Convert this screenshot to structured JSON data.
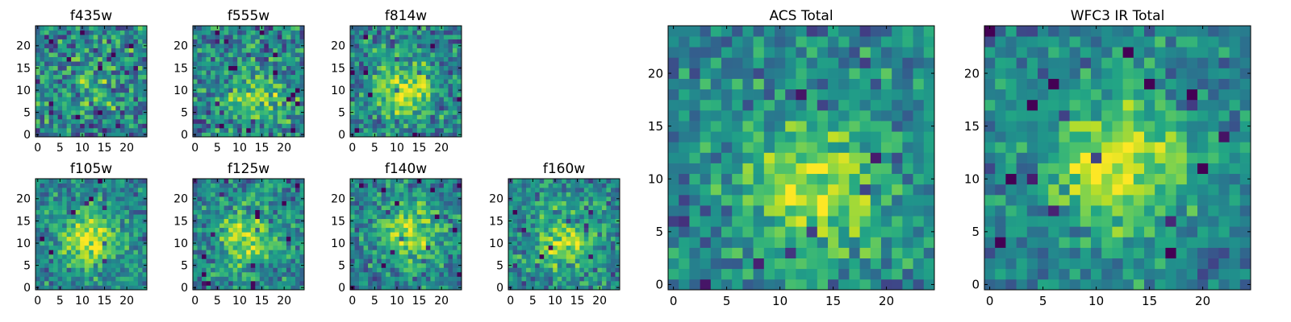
{
  "chart_data": [
    {
      "type": "heatmap",
      "title": "f435w",
      "xticks": [
        0,
        5,
        10,
        15,
        20
      ],
      "yticks": [
        0,
        5,
        10,
        15,
        20
      ],
      "xlim": [
        0,
        25
      ],
      "ylim": [
        0,
        25
      ],
      "grid_size": 25,
      "colormap": "viridis",
      "center": [
        12,
        12
      ],
      "blob": 0.15,
      "noise": 0.55,
      "seed": 11
    },
    {
      "type": "heatmap",
      "title": "f555w",
      "xticks": [
        0,
        5,
        10,
        15,
        20
      ],
      "yticks": [
        0,
        5,
        10,
        15,
        20
      ],
      "xlim": [
        0,
        25
      ],
      "ylim": [
        0,
        25
      ],
      "grid_size": 25,
      "colormap": "viridis",
      "center": [
        14,
        8
      ],
      "blob": 0.35,
      "noise": 0.5,
      "seed": 22
    },
    {
      "type": "heatmap",
      "title": "f814w",
      "xticks": [
        0,
        5,
        10,
        15,
        20
      ],
      "yticks": [
        0,
        5,
        10,
        15,
        20
      ],
      "xlim": [
        0,
        25
      ],
      "ylim": [
        0,
        25
      ],
      "grid_size": 25,
      "colormap": "viridis",
      "center": [
        12,
        10
      ],
      "blob": 0.45,
      "noise": 0.45,
      "seed": 33
    },
    {
      "type": "heatmap",
      "title": "f105w",
      "xticks": [
        0,
        5,
        10,
        15,
        20
      ],
      "yticks": [
        0,
        5,
        10,
        15,
        20
      ],
      "xlim": [
        0,
        25
      ],
      "ylim": [
        0,
        25
      ],
      "grid_size": 25,
      "colormap": "viridis",
      "center": [
        12,
        11
      ],
      "blob": 0.5,
      "noise": 0.35,
      "seed": 44
    },
    {
      "type": "heatmap",
      "title": "f125w",
      "xticks": [
        0,
        5,
        10,
        15,
        20
      ],
      "yticks": [
        0,
        5,
        10,
        15,
        20
      ],
      "xlim": [
        0,
        25
      ],
      "ylim": [
        0,
        25
      ],
      "grid_size": 25,
      "colormap": "viridis",
      "center": [
        12,
        11
      ],
      "blob": 0.4,
      "noise": 0.4,
      "seed": 55
    },
    {
      "type": "heatmap",
      "title": "f140w",
      "xticks": [
        0,
        5,
        10,
        15,
        20
      ],
      "yticks": [
        0,
        5,
        10,
        15,
        20
      ],
      "xlim": [
        0,
        25
      ],
      "ylim": [
        0,
        25
      ],
      "grid_size": 25,
      "colormap": "viridis",
      "center": [
        13,
        12
      ],
      "blob": 0.45,
      "noise": 0.38,
      "seed": 66
    },
    {
      "type": "heatmap",
      "title": "f160w",
      "xticks": [
        0,
        5,
        10,
        15,
        20
      ],
      "yticks": [
        0,
        5,
        10,
        15,
        20
      ],
      "xlim": [
        0,
        25
      ],
      "ylim": [
        0,
        25
      ],
      "grid_size": 25,
      "colormap": "viridis",
      "center": [
        12,
        11
      ],
      "blob": 0.42,
      "noise": 0.4,
      "seed": 77
    },
    {
      "type": "heatmap",
      "title": "ACS Total",
      "xticks": [
        0,
        5,
        10,
        15,
        20
      ],
      "yticks": [
        0,
        5,
        10,
        15,
        20
      ],
      "xlim": [
        0,
        25
      ],
      "ylim": [
        0,
        25
      ],
      "grid_size": 25,
      "colormap": "viridis",
      "center": [
        13,
        9
      ],
      "blob": 0.45,
      "noise": 0.35,
      "seed": 88
    },
    {
      "type": "heatmap",
      "title": "WFC3 IR Total",
      "xticks": [
        0,
        5,
        10,
        15,
        20
      ],
      "yticks": [
        0,
        5,
        10,
        15,
        20
      ],
      "xlim": [
        0,
        25
      ],
      "ylim": [
        0,
        25
      ],
      "grid_size": 25,
      "colormap": "viridis",
      "center": [
        12,
        11
      ],
      "blob": 0.5,
      "noise": 0.3,
      "seed": 99
    }
  ]
}
